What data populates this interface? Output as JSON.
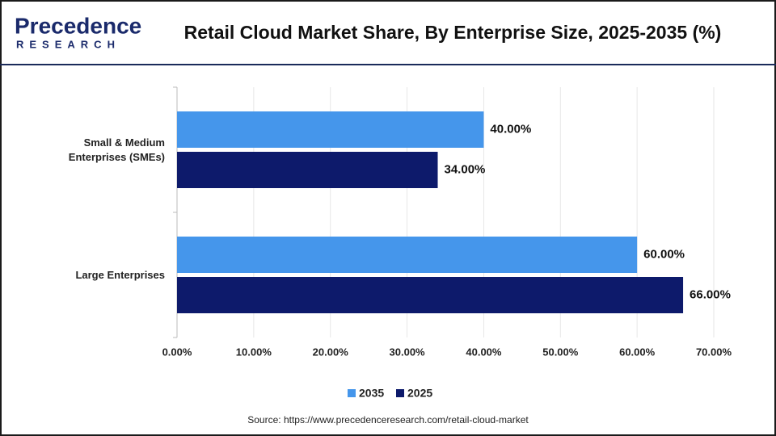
{
  "chart_data": {
    "type": "hbar",
    "brand": "Precedence",
    "brand_sub": "RESEARCH",
    "title": "Retail Cloud Market Share, By Enterprise Size, 2025-2035 (%)",
    "categories": [
      "Small & Medium Enterprises (SMEs)",
      "Large Enterprises"
    ],
    "series": [
      {
        "name": "2035",
        "color": "#4596eb",
        "values": [
          40,
          60
        ],
        "value_labels": [
          "40.00%",
          "60.00%"
        ]
      },
      {
        "name": "2025",
        "color": "#0d1a6b",
        "values": [
          34,
          66
        ],
        "value_labels": [
          "34.00%",
          "66.00%"
        ]
      }
    ],
    "xlim": [
      0,
      70
    ],
    "xticks": [
      {
        "value": 0,
        "label": "0.00%"
      },
      {
        "value": 10,
        "label": "10.00%"
      },
      {
        "value": 20,
        "label": "20.00%"
      },
      {
        "value": 30,
        "label": "30.00%"
      },
      {
        "value": 40,
        "label": "40.00%"
      },
      {
        "value": 50,
        "label": "50.00%"
      },
      {
        "value": 60,
        "label": "60.00%"
      },
      {
        "value": 70,
        "label": "70.00%"
      }
    ],
    "grid": true,
    "legend": "bottom",
    "source": "Source: https://www.precedenceresearch.com/retail-cloud-market"
  }
}
